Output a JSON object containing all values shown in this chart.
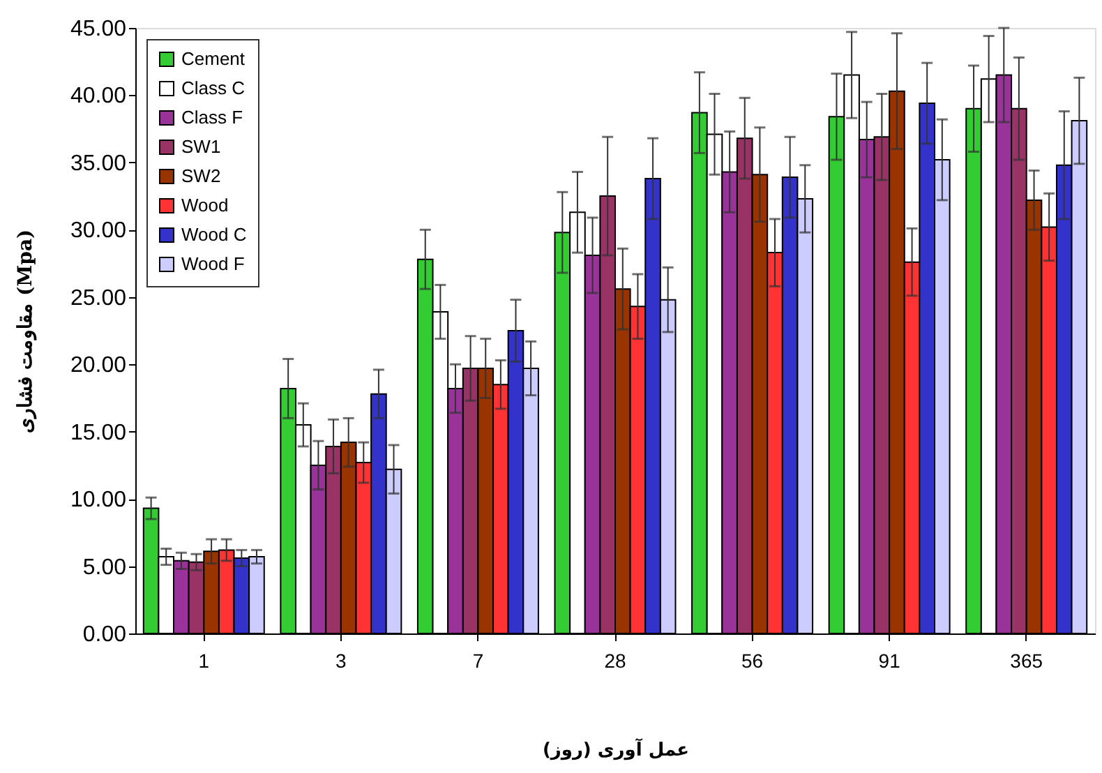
{
  "chart_data": {
    "type": "bar",
    "xlabel": "عمل آوری (روز)",
    "ylabel": "مقاومت فشاری (Mpa)",
    "categories": [
      "1",
      "3",
      "7",
      "28",
      "56",
      "91",
      "365"
    ],
    "series": [
      {
        "name": "Cement",
        "color": "#33cc33",
        "values": [
          9.3,
          18.2,
          27.8,
          29.8,
          38.7,
          38.4,
          39.0
        ],
        "errors": [
          0.8,
          2.2,
          2.2,
          3.0,
          3.0,
          3.2,
          3.2
        ]
      },
      {
        "name": "Class C",
        "color": "#ffffff",
        "values": [
          5.7,
          15.5,
          23.9,
          31.3,
          37.1,
          41.5,
          41.2
        ],
        "errors": [
          0.6,
          1.6,
          2.0,
          3.0,
          3.0,
          3.2,
          3.2
        ]
      },
      {
        "name": "Class F",
        "color": "#993399",
        "values": [
          5.4,
          12.5,
          18.2,
          28.1,
          34.3,
          36.7,
          41.5
        ],
        "errors": [
          0.6,
          1.8,
          1.8,
          2.8,
          3.0,
          2.8,
          3.5
        ]
      },
      {
        "name": "SW1",
        "color": "#993366",
        "values": [
          5.3,
          13.9,
          19.7,
          32.5,
          36.8,
          36.9,
          39.0
        ],
        "errors": [
          0.6,
          2.0,
          2.4,
          4.4,
          3.0,
          3.2,
          3.8
        ]
      },
      {
        "name": "SW2",
        "color": "#993300",
        "values": [
          6.1,
          14.2,
          19.7,
          25.6,
          34.1,
          40.3,
          32.2
        ],
        "errors": [
          0.9,
          1.8,
          2.2,
          3.0,
          3.5,
          4.3,
          2.2
        ]
      },
      {
        "name": "Wood",
        "color": "#ff3333",
        "values": [
          6.2,
          12.7,
          18.5,
          24.3,
          28.3,
          27.6,
          30.2
        ],
        "errors": [
          0.8,
          1.5,
          1.8,
          2.4,
          2.5,
          2.5,
          2.5
        ]
      },
      {
        "name": "Wood C",
        "color": "#3333cc",
        "values": [
          5.6,
          17.8,
          22.5,
          33.8,
          33.9,
          39.4,
          34.8
        ],
        "errors": [
          0.6,
          1.8,
          2.3,
          3.0,
          3.0,
          3.0,
          4.0
        ]
      },
      {
        "name": "Wood F",
        "color": "#ccccff",
        "values": [
          5.7,
          12.2,
          19.7,
          24.8,
          32.3,
          35.2,
          38.1
        ],
        "errors": [
          0.5,
          1.8,
          2.0,
          2.4,
          2.5,
          3.0,
          3.2
        ]
      }
    ],
    "ylim": [
      0,
      45
    ],
    "yticks": [
      {
        "value": 0,
        "label": "0.00"
      },
      {
        "value": 5,
        "label": "5.00"
      },
      {
        "value": 10,
        "label": "10.00"
      },
      {
        "value": 15,
        "label": "15.00"
      },
      {
        "value": 20,
        "label": "20.00"
      },
      {
        "value": 25,
        "label": "25.00"
      },
      {
        "value": 30,
        "label": "30.00"
      },
      {
        "value": 35,
        "label": "35.00"
      },
      {
        "value": 40,
        "label": "40.00"
      },
      {
        "value": 45,
        "label": "45.00"
      }
    ],
    "grid": false,
    "legend": "top left"
  }
}
